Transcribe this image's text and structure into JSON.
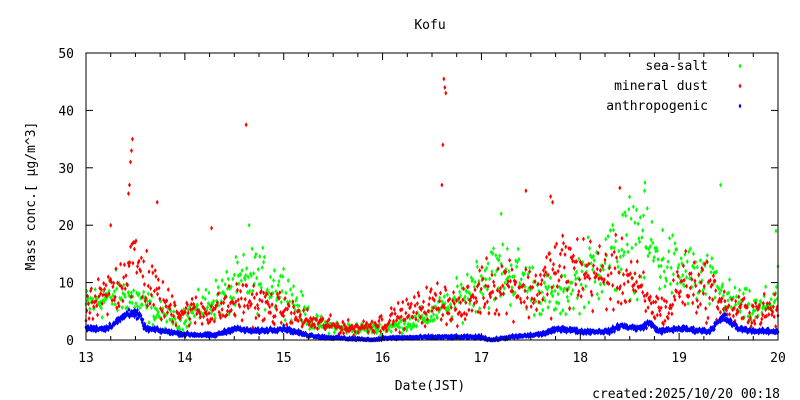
{
  "chart_data": {
    "type": "scatter",
    "title": "Kofu",
    "xlabel": "Date(JST)",
    "ylabel": "Mass conc.[ μg/m^3]",
    "xlim": [
      13,
      20
    ],
    "ylim": [
      0,
      50
    ],
    "xticks": [
      "13",
      "14",
      "15",
      "16",
      "17",
      "18",
      "19",
      "20"
    ],
    "yticks": [
      "0",
      "10",
      "20",
      "30",
      "40",
      "50"
    ],
    "legend_position": "top-right",
    "footer": "created:2025/10/20 00:18",
    "series": [
      {
        "name": "sea-salt",
        "color": "#00ff00",
        "trend": [
          [
            13,
            6
          ],
          [
            13.3,
            8
          ],
          [
            13.5,
            7
          ],
          [
            13.8,
            4
          ],
          [
            14.0,
            4
          ],
          [
            14.5,
            9
          ],
          [
            14.7,
            11
          ],
          [
            15.0,
            9
          ],
          [
            15.3,
            3
          ],
          [
            15.6,
            2
          ],
          [
            16.0,
            2
          ],
          [
            16.3,
            3
          ],
          [
            16.7,
            6
          ],
          [
            17.0,
            11
          ],
          [
            17.3,
            12
          ],
          [
            17.6,
            8
          ],
          [
            17.8,
            7
          ],
          [
            18.0,
            11
          ],
          [
            18.3,
            14
          ],
          [
            18.6,
            18
          ],
          [
            18.8,
            14
          ],
          [
            19.0,
            12
          ],
          [
            19.3,
            10
          ],
          [
            19.5,
            7
          ],
          [
            19.8,
            5
          ],
          [
            20,
            8
          ]
        ],
        "spread": 0.45,
        "outliers": [
          [
            14.65,
            20
          ],
          [
            17.2,
            22
          ],
          [
            18.65,
            26
          ],
          [
            19.42,
            27
          ],
          [
            19.98,
            19
          ]
        ]
      },
      {
        "name": "mineral dust",
        "color": "#ff0000",
        "trend": [
          [
            13,
            5
          ],
          [
            13.3,
            9
          ],
          [
            13.45,
            14
          ],
          [
            13.6,
            11
          ],
          [
            13.8,
            6
          ],
          [
            14.0,
            5
          ],
          [
            14.3,
            5
          ],
          [
            14.6,
            7
          ],
          [
            15.0,
            5
          ],
          [
            15.3,
            3
          ],
          [
            15.7,
            2
          ],
          [
            16.0,
            3
          ],
          [
            16.3,
            5
          ],
          [
            16.6,
            7
          ],
          [
            16.8,
            5
          ],
          [
            17.0,
            9
          ],
          [
            17.3,
            10
          ],
          [
            17.5,
            8
          ],
          [
            17.8,
            13
          ],
          [
            18.0,
            12
          ],
          [
            18.3,
            11
          ],
          [
            18.5,
            11
          ],
          [
            18.7,
            6
          ],
          [
            18.9,
            5
          ],
          [
            19.0,
            10
          ],
          [
            19.3,
            9
          ],
          [
            19.5,
            5
          ],
          [
            19.8,
            5
          ],
          [
            20,
            5
          ]
        ],
        "spread": 0.5,
        "outliers": [
          [
            13.47,
            35
          ],
          [
            13.46,
            33
          ],
          [
            13.45,
            31
          ],
          [
            13.44,
            27
          ],
          [
            13.43,
            25.5
          ],
          [
            13.72,
            24
          ],
          [
            14.62,
            37.5
          ],
          [
            16.62,
            45.5
          ],
          [
            16.63,
            44
          ],
          [
            16.64,
            43
          ],
          [
            16.61,
            34
          ],
          [
            16.6,
            27
          ],
          [
            17.7,
            25
          ],
          [
            17.72,
            24
          ],
          [
            17.45,
            26
          ],
          [
            18.4,
            26.5
          ],
          [
            13.25,
            20
          ],
          [
            14.27,
            19.5
          ]
        ]
      },
      {
        "name": "anthropogenic",
        "color": "#0000ff",
        "trend": [
          [
            13,
            2
          ],
          [
            13.2,
            2
          ],
          [
            13.3,
            3
          ],
          [
            13.45,
            5
          ],
          [
            13.55,
            4
          ],
          [
            13.6,
            2
          ],
          [
            13.8,
            1.5
          ],
          [
            14.0,
            1
          ],
          [
            14.3,
            0.8
          ],
          [
            14.5,
            2
          ],
          [
            14.7,
            1.5
          ],
          [
            15.0,
            2
          ],
          [
            15.2,
            1
          ],
          [
            15.4,
            0.5
          ],
          [
            15.6,
            0.3
          ],
          [
            15.9,
            0
          ],
          [
            16.0,
            0.3
          ],
          [
            16.5,
            0.5
          ],
          [
            17.0,
            0.5
          ],
          [
            17.1,
            0
          ],
          [
            17.3,
            0.5
          ],
          [
            17.6,
            1
          ],
          [
            17.8,
            2
          ],
          [
            18.0,
            1.5
          ],
          [
            18.3,
            1.5
          ],
          [
            18.4,
            2.5
          ],
          [
            18.6,
            2
          ],
          [
            18.7,
            3
          ],
          [
            18.8,
            1.5
          ],
          [
            19.0,
            2
          ],
          [
            19.3,
            1.5
          ],
          [
            19.45,
            4
          ],
          [
            19.6,
            2
          ],
          [
            19.8,
            1.5
          ],
          [
            20,
            1.5
          ]
        ],
        "spread": 0.12,
        "outliers": []
      }
    ]
  }
}
